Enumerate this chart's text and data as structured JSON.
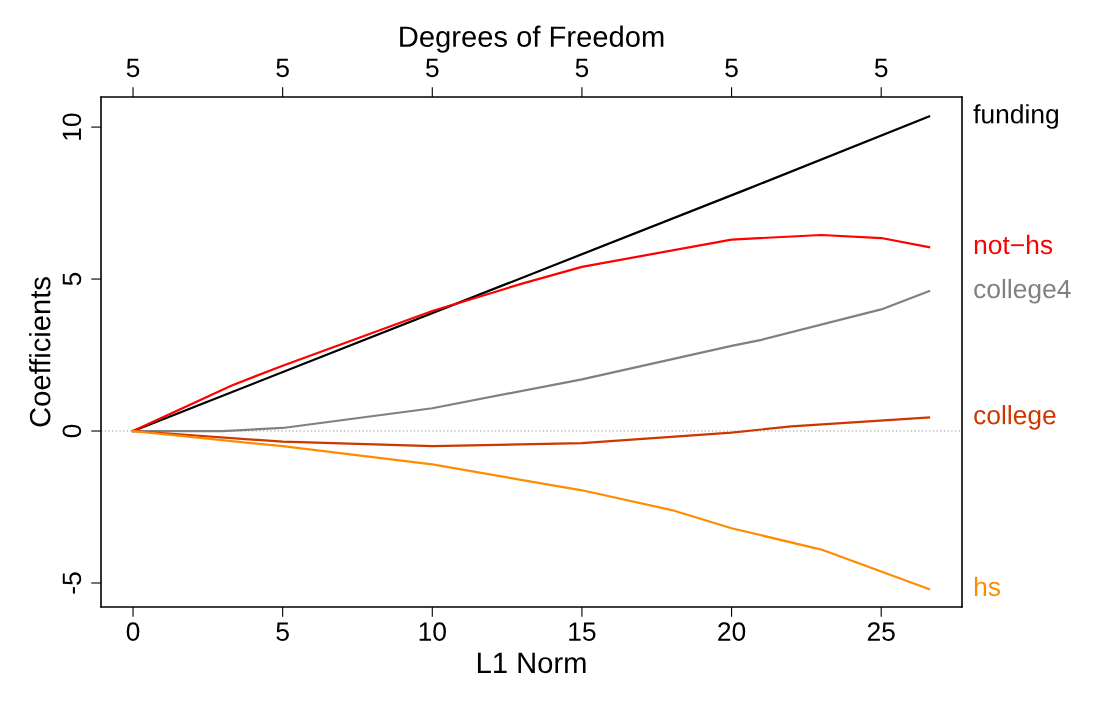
{
  "chart_data": {
    "type": "line",
    "xlabel": "L1 Norm",
    "ylabel": "Coefficients",
    "x2label": "Degrees of Freedom",
    "xlim": [
      -1.07,
      27.7
    ],
    "xticks": [
      0,
      5,
      10,
      15,
      20,
      25
    ],
    "ylim": [
      -5.79,
      10.99
    ],
    "yticks": [
      -5,
      0,
      5,
      10
    ],
    "annotations": [
      {
        "text": "5",
        "x": 0
      },
      {
        "text": "5",
        "x": 5
      },
      {
        "text": "5",
        "x": 10
      },
      {
        "text": "5",
        "x": 15
      },
      {
        "text": "5",
        "x": 20
      },
      {
        "text": "5",
        "x": 25
      }
    ],
    "ref_lines": [
      {
        "axis": "y",
        "value": 0,
        "label": null,
        "color": "#bebebe",
        "line_style": "dotted"
      }
    ],
    "grid": false,
    "marker": "none",
    "line_style": "solid",
    "series": [
      {
        "name": "funding",
        "color": "#000000",
        "x": [
          0,
          20.5,
          26.6
        ],
        "values": [
          0,
          7.95,
          10.35
        ]
      },
      {
        "name": "not−hs",
        "color": "#ff0000",
        "x": [
          0,
          3.3,
          5,
          10,
          13,
          15,
          20,
          23,
          25,
          26.6
        ],
        "values": [
          0,
          1.5,
          2.15,
          3.95,
          4.85,
          5.4,
          6.3,
          6.45,
          6.35,
          6.05
        ]
      },
      {
        "name": "college4",
        "color": "#808080",
        "x": [
          0,
          3,
          5,
          10,
          15,
          20,
          21,
          25,
          26.6
        ],
        "values": [
          0,
          0,
          0.1,
          0.75,
          1.7,
          2.8,
          3.0,
          4.0,
          4.6
        ]
      },
      {
        "name": "college",
        "color": "#cd3700",
        "x": [
          0,
          5,
          10,
          15,
          20,
          22,
          26.6
        ],
        "values": [
          0,
          -0.35,
          -0.5,
          -0.4,
          -0.05,
          0.15,
          0.45
        ]
      },
      {
        "name": "hs",
        "color": "#ff8c00",
        "x": [
          0,
          5,
          10,
          15,
          18,
          20,
          23,
          26.6
        ],
        "values": [
          0,
          -0.5,
          -1.1,
          -1.95,
          -2.6,
          -3.2,
          -3.9,
          -5.2
        ]
      }
    ]
  }
}
